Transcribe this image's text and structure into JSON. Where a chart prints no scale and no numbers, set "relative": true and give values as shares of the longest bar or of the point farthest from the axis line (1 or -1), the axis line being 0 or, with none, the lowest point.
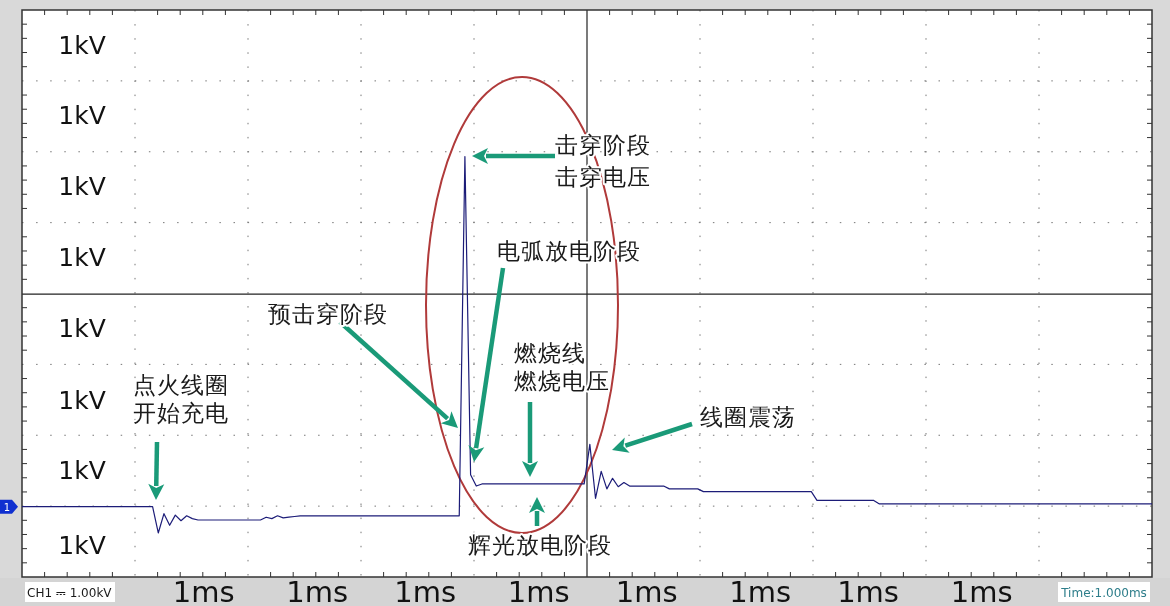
{
  "chart_data": {
    "type": "line",
    "relative": true,
    "categories": [
      null,
      null,
      null,
      null,
      null,
      null,
      null,
      null,
      null,
      null,
      null,
      null,
      null,
      null,
      null,
      null,
      null,
      null,
      null,
      null,
      null,
      null,
      null,
      null,
      null,
      null,
      null,
      null,
      null,
      null,
      null,
      null,
      "1ms",
      null,
      null,
      null,
      null,
      null,
      null,
      null,
      null,
      null,
      null,
      null,
      null,
      null,
      null,
      null,
      null,
      null,
      null,
      null,
      "1ms",
      null,
      null,
      null,
      null,
      null,
      null,
      null,
      null,
      null,
      null,
      null,
      null,
      null,
      null,
      null,
      null,
      null,
      null,
      "1ms",
      null,
      null,
      null,
      null,
      null,
      null,
      null,
      null,
      null,
      null,
      null,
      null,
      null,
      null,
      null,
      null,
      null,
      null,
      null,
      "1ms",
      null,
      null,
      null,
      null,
      null,
      null,
      null,
      null,
      null,
      null,
      null,
      null,
      null,
      null,
      null,
      null,
      null,
      null,
      "1ms",
      null,
      null,
      null,
      null,
      null,
      null,
      null,
      null,
      null,
      null,
      null,
      null,
      null,
      null,
      null,
      null,
      null,
      null,
      null,
      "1ms",
      null,
      null,
      null,
      null,
      null,
      null,
      null,
      null,
      null,
      null,
      null,
      null,
      null,
      null,
      null,
      null,
      null,
      null,
      "1ms",
      null,
      null,
      null,
      null,
      null,
      null,
      null,
      null,
      null,
      null,
      null,
      null,
      null,
      null,
      null,
      null,
      null,
      null,
      null,
      "1ms",
      null,
      null,
      null,
      null,
      null,
      null,
      null,
      null,
      null,
      null,
      null,
      null,
      null,
      null,
      null,
      null,
      null,
      null,
      null,
      null,
      null,
      null,
      null,
      null,
      null,
      null,
      null,
      null,
      null,
      null
    ],
    "series": [
      {
        "color": "#1c1c78",
        "values": [
          0,
          0,
          0,
          0,
          0,
          0,
          0,
          0,
          0,
          0,
          0,
          0,
          0,
          0,
          0,
          0,
          0,
          0,
          0,
          0,
          0,
          0,
          0,
          0,
          -0.075,
          -0.02,
          -0.053,
          -0.024,
          -0.04,
          -0.026,
          -0.034,
          -0.038,
          -0.038,
          -0.038,
          -0.038,
          -0.038,
          -0.038,
          -0.038,
          -0.038,
          -0.038,
          -0.038,
          -0.038,
          -0.038,
          -0.03,
          -0.034,
          -0.026,
          -0.032,
          -0.03,
          -0.028,
          -0.026,
          -0.026,
          -0.026,
          -0.026,
          -0.026,
          -0.026,
          -0.026,
          -0.026,
          -0.026,
          -0.026,
          -0.026,
          -0.026,
          -0.026,
          -0.026,
          -0.026,
          -0.026,
          -0.026,
          -0.026,
          -0.026,
          -0.026,
          -0.026,
          -0.026,
          -0.026,
          -0.026,
          -0.026,
          -0.026,
          -0.026,
          -0.026,
          -0.026,
          1,
          0.091,
          0.059,
          0.065,
          0.065,
          0.065,
          0.065,
          0.065,
          0.065,
          0.065,
          0.065,
          0.065,
          0.065,
          0.065,
          0.065,
          0.065,
          0.065,
          0.065,
          0.065,
          0.065,
          0.065,
          0.065,
          0.178,
          0.024,
          0.101,
          0.051,
          0.081,
          0.057,
          0.069,
          0.059,
          0.059,
          0.059,
          0.059,
          0.059,
          0.059,
          0.059,
          0.051,
          0.051,
          0.051,
          0.051,
          0.051,
          0.051,
          0.043,
          0.043,
          0.043,
          0.043,
          0.043,
          0.043,
          0.043,
          0.043,
          0.043,
          0.043,
          0.043,
          0.043,
          0.043,
          0.043,
          0.043,
          0.043,
          0.043,
          0.043,
          0.043,
          0.043,
          0.018,
          0.018,
          0.018,
          0.018,
          0.018,
          0.018,
          0.018,
          0.018,
          0.018,
          0.018,
          0.018,
          0.008,
          0.008,
          0.008,
          0.008,
          0.008,
          0.008,
          0.008,
          0.008,
          0.008,
          0.008,
          0.008,
          0.008,
          0.008,
          0.008,
          0.008,
          0.008,
          0.008,
          0.008,
          0.008,
          0.008,
          0.008,
          0.008,
          0.008,
          0.008,
          0.008,
          0.008,
          0.008,
          0.008,
          0.008,
          0.008,
          0.008,
          0.008,
          0.008,
          0.008,
          0.008,
          0.008,
          0.008,
          0.008,
          0.008,
          0.008,
          0.008,
          0.008,
          0.008,
          0.008,
          0.008,
          0.008,
          0.008,
          0.008,
          0.008
        ]
      }
    ],
    "grid": true,
    "ref_lines": [
      {
        "axis": "y",
        "value": 0.607,
        "color": "#222222"
      }
    ],
    "annotations": [
      "1kV",
      "1kV",
      "1kV",
      "1kV",
      "1kV",
      "1kV",
      "1kV",
      "1kV",
      "点火线圈开始充电",
      "预击穿阶段",
      "击穿阶段击穿电压",
      "电弧放电阶段",
      "燃烧线燃烧电压",
      "辉光放电阶段",
      "线圈震荡",
      "1",
      "CH1 ⎓ 1.00kV",
      "Time:1.000ms"
    ]
  }
}
